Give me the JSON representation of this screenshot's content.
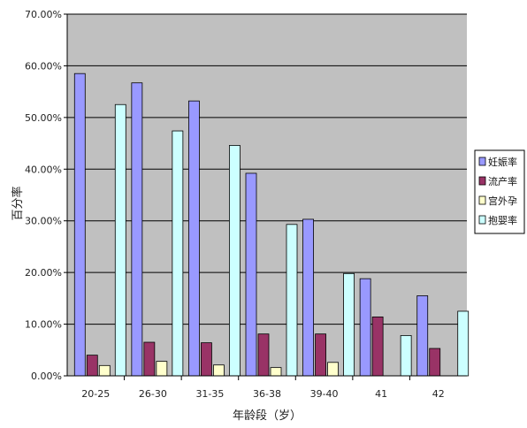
{
  "chart_data": {
    "type": "bar",
    "xlabel": "年龄段（岁）",
    "ylabel": "百分率",
    "categories": [
      "20-25",
      "26-30",
      "31-35",
      "36-38",
      "39-40",
      "41",
      "42"
    ],
    "ylim": [
      0,
      70
    ],
    "yticks": [
      "0.00%",
      "10.00%",
      "20.00%",
      "30.00%",
      "40.00%",
      "50.00%",
      "60.00%",
      "70.00%"
    ],
    "grid": true,
    "legend_position": "right",
    "series": [
      {
        "name": "妊娠率",
        "color": "#9999ff",
        "values": [
          58.5,
          56.7,
          53.2,
          39.2,
          30.3,
          18.8,
          15.5
        ]
      },
      {
        "name": "流产率",
        "color": "#993366",
        "values": [
          4.0,
          6.5,
          6.4,
          8.1,
          8.1,
          11.4,
          5.3
        ]
      },
      {
        "name": "宫外孕",
        "color": "#ffffcc",
        "values": [
          2.0,
          2.8,
          2.1,
          1.6,
          2.6,
          0,
          0
        ]
      },
      {
        "name": "抱婴率",
        "color": "#ccffff",
        "values": [
          52.5,
          47.4,
          44.6,
          29.3,
          19.8,
          7.8,
          12.5
        ]
      }
    ]
  }
}
